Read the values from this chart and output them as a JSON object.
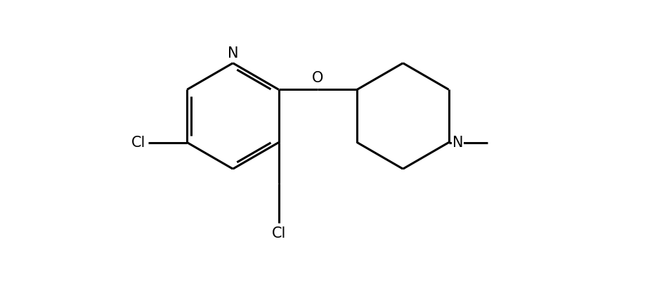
{
  "background_color": "#ffffff",
  "line_color": "#000000",
  "line_width": 2.2,
  "font_size": 15,
  "figsize": [
    9.18,
    4.28
  ],
  "dpi": 100,
  "xlim": [
    -1.0,
    10.5
  ],
  "ylim": [
    -1.5,
    5.0
  ]
}
